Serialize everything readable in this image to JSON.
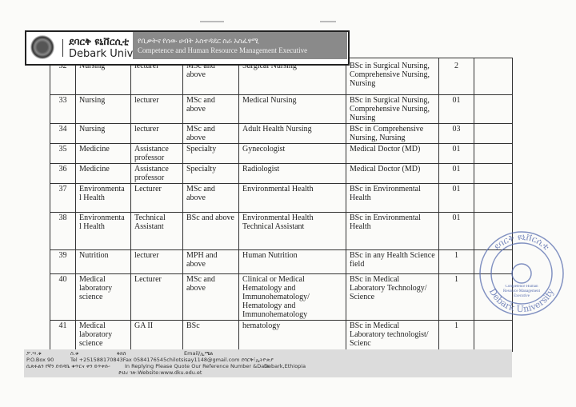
{
  "header": {
    "university_amharic": "ደባርቅ ዩኒቨርሲቲ",
    "university_english": "Debark University",
    "office_amharic": "የቢቃትና የሰው ሀብት አስተዳደር ስራ አስፈፃሚ",
    "office_english": "Competence and Human Resource Management Executive"
  },
  "table": {
    "rows": [
      {
        "no": "32",
        "dept": "Nursing",
        "rank": "lecturer",
        "level": "MSc and above",
        "field": "Surgical Nursing",
        "qualification": "BSc in Surgical Nursing, Comprehensive Nursing, Nursing",
        "qty": "2"
      },
      {
        "no": "33",
        "dept": "Nursing",
        "rank": "lecturer",
        "level": "MSc and above",
        "field": "Medical Nursing",
        "qualification": "BSc in Surgical Nursing, Comprehensive Nursing, Nursing",
        "qty": "01"
      },
      {
        "no": "34",
        "dept": "Nursing",
        "rank": "lecturer",
        "level": "MSc and above",
        "field": "Adult Health Nursing",
        "qualification": "BSc in Comprehensive Nursing, Nursing",
        "qty": "03"
      },
      {
        "no": "35",
        "dept": "Medicine",
        "rank": "Assistance professor",
        "level": "Specialty",
        "field": "Gynecologist",
        "qualification": "Medical Doctor (MD)",
        "qty": "01"
      },
      {
        "no": "36",
        "dept": "Medicine",
        "rank": "Assistance professor",
        "level": "Specialty",
        "field": "Radiologist",
        "qualification": "Medical Doctor (MD)",
        "qty": "01"
      },
      {
        "no": "37",
        "dept": "Environmenta l Health",
        "rank": "Lecturer",
        "level": "MSc and above",
        "field": "Environmental Health",
        "qualification": "BSc in Environmental Health",
        "qty": "01"
      },
      {
        "no": "38",
        "dept": "Environmenta l Health",
        "rank": "Technical Assistant",
        "level": "BSc and above",
        "field": "Environmental Health Technical Assistant",
        "qualification": "BSc in Environmental Health",
        "qty": "01"
      },
      {
        "no": "39",
        "dept": "Nutrition",
        "rank": "lecturer",
        "level": "MPH and above",
        "field": "Human Nutrition",
        "qualification": "BSc in any Health Science field",
        "qty": "1"
      },
      {
        "no": "40",
        "dept": "Medical laboratory science",
        "rank": "Lecturer",
        "level": "MSc and above",
        "field": "Clinical or Medical Hematology and Immunohematology/ Hematology and Immunohematology",
        "qualification": "BSc in Medical Laboratory Technology/ Science",
        "qty": "1"
      },
      {
        "no": "41",
        "dept": "Medical laboratory science",
        "rank": "GA II",
        "level": "BSc",
        "field": "hematology",
        "qualification": "BSc in Medical Laboratory technologist/ Scienc",
        "qty": "1"
      }
    ]
  },
  "footer": {
    "pobox_am": "ፖ.ሣ.ቁ",
    "tel_am": "ስ.ቁ",
    "fax_am": "ፋክስ",
    "email_label": "Email/ኢሜል",
    "pobox": "P.O.Box 90",
    "contact": "Tel +251588170843Fax 0584176545chilotsisay1148@gmail.com ደባርቅ፣ኢትዮጵያ",
    "reply_am": "ሲጽፉልን የኛን ደብዳቤ ቁጥርና ቀን ይጥቀሱ፡",
    "reply": "In Replying Please Quote Our Reference Number &Date",
    "location": "Debark,Ethiopia",
    "website": "ድህረ ገጽ:Website:www.dku.edu.et"
  },
  "stamp": {
    "text_top": "ደባርቅ ዩኒቨርሲቲ",
    "text_bottom": "Debark University",
    "text_center": "Competence Human Resource Management Executive",
    "color": "#5a6fb0"
  }
}
